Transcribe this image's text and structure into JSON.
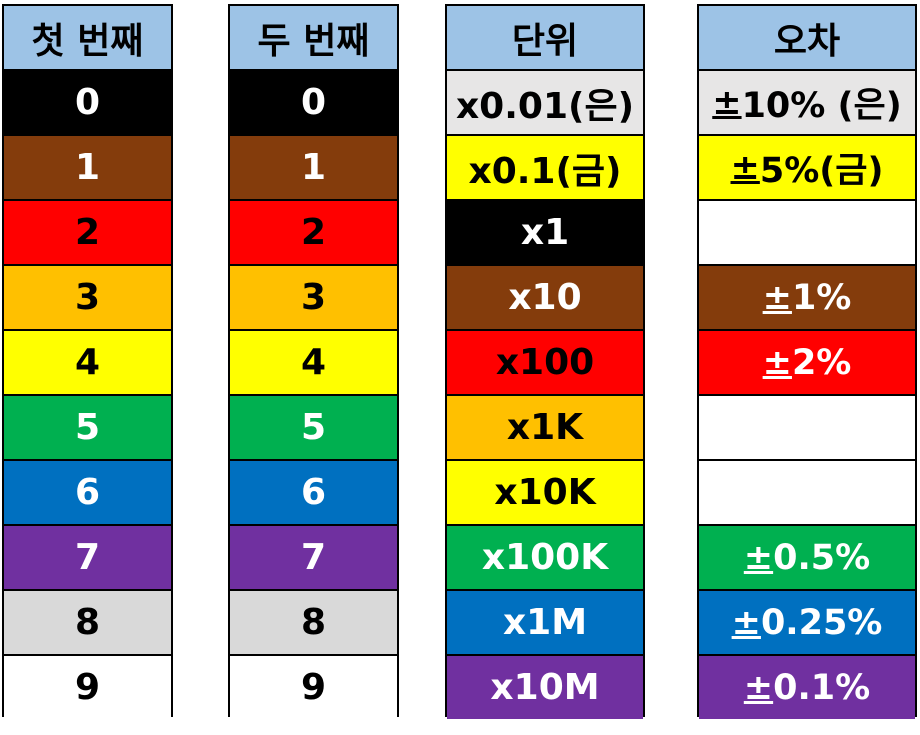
{
  "first_digit": {
    "header": "첫 번째",
    "rows": [
      {
        "label": "0",
        "color": "#000000",
        "text_color": "#ffffff"
      },
      {
        "label": "1",
        "color": "#843c0c",
        "text_color": "#ffffff"
      },
      {
        "label": "2",
        "color": "#ff0000",
        "text_color": "#000000"
      },
      {
        "label": "3",
        "color": "#ffc000",
        "text_color": "#000000"
      },
      {
        "label": "4",
        "color": "#ffff00",
        "text_color": "#000000"
      },
      {
        "label": "5",
        "color": "#00b050",
        "text_color": "#ffffff"
      },
      {
        "label": "6",
        "color": "#0070c0",
        "text_color": "#ffffff"
      },
      {
        "label": "7",
        "color": "#7030a0",
        "text_color": "#ffffff"
      },
      {
        "label": "8",
        "color": "#d9d9d9",
        "text_color": "#000000"
      },
      {
        "label": "9",
        "color": "#ffffff",
        "text_color": "#000000"
      }
    ]
  },
  "second_digit": {
    "header": "두 번째",
    "rows": [
      {
        "label": "0",
        "color": "#000000",
        "text_color": "#ffffff"
      },
      {
        "label": "1",
        "color": "#843c0c",
        "text_color": "#ffffff"
      },
      {
        "label": "2",
        "color": "#ff0000",
        "text_color": "#000000"
      },
      {
        "label": "3",
        "color": "#ffc000",
        "text_color": "#000000"
      },
      {
        "label": "4",
        "color": "#ffff00",
        "text_color": "#000000"
      },
      {
        "label": "5",
        "color": "#00b050",
        "text_color": "#ffffff"
      },
      {
        "label": "6",
        "color": "#0070c0",
        "text_color": "#ffffff"
      },
      {
        "label": "7",
        "color": "#7030a0",
        "text_color": "#ffffff"
      },
      {
        "label": "8",
        "color": "#d9d9d9",
        "text_color": "#000000"
      },
      {
        "label": "9",
        "color": "#ffffff",
        "text_color": "#000000"
      }
    ]
  },
  "multiplier": {
    "header": "단위",
    "rows": [
      {
        "label": "x0.01(은)",
        "color": "#e7e6e6",
        "text_color": "#000000"
      },
      {
        "label": "x0.1(금)",
        "color": "#ffff00",
        "text_color": "#000000"
      },
      {
        "label": "x1",
        "color": "#000000",
        "text_color": "#ffffff"
      },
      {
        "label": "x10",
        "color": "#843c0c",
        "text_color": "#ffffff"
      },
      {
        "label": "x100",
        "color": "#ff0000",
        "text_color": "#000000"
      },
      {
        "label": "x1K",
        "color": "#ffc000",
        "text_color": "#000000"
      },
      {
        "label": "x10K",
        "color": "#ffff00",
        "text_color": "#000000"
      },
      {
        "label": "x100K",
        "color": "#00b050",
        "text_color": "#ffffff"
      },
      {
        "label": "x1M",
        "color": "#0070c0",
        "text_color": "#ffffff"
      },
      {
        "label": "x10M",
        "color": "#7030a0",
        "text_color": "#ffffff"
      }
    ]
  },
  "tolerance": {
    "header": "오차",
    "rows": [
      {
        "sign": "±",
        "value": "10% (은)",
        "color": "#e7e6e6",
        "text_color": "#000000"
      },
      {
        "sign": "±",
        "value": "5%(금)",
        "color": "#ffff00",
        "text_color": "#000000"
      },
      {
        "sign": "",
        "value": "",
        "color": "#ffffff",
        "text_color": "#000000"
      },
      {
        "sign": "±",
        "value": "1%",
        "color": "#843c0c",
        "text_color": "#ffffff"
      },
      {
        "sign": "±",
        "value": "2%",
        "color": "#ff0000",
        "text_color": "#ffffff"
      },
      {
        "sign": "",
        "value": "",
        "color": "#ffffff",
        "text_color": "#000000"
      },
      {
        "sign": "",
        "value": "",
        "color": "#ffffff",
        "text_color": "#000000"
      },
      {
        "sign": "±",
        "value": "0.5%",
        "color": "#00b050",
        "text_color": "#ffffff"
      },
      {
        "sign": "±",
        "value": "0.25%",
        "color": "#0070c0",
        "text_color": "#ffffff"
      },
      {
        "sign": "±",
        "value": "0.1%",
        "color": "#7030a0",
        "text_color": "#ffffff"
      }
    ]
  },
  "header_color": "#9dc3e6"
}
